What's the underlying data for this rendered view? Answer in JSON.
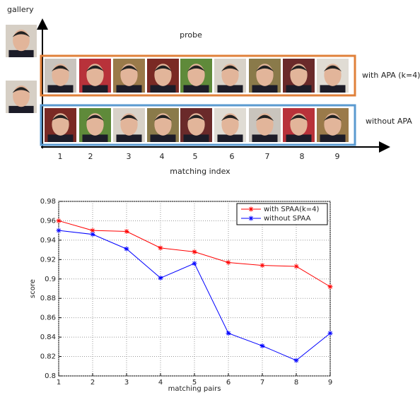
{
  "figure": {
    "gallery_label": "gallery",
    "probe_label": "probe",
    "row_labels": [
      "with APA (k=4)",
      "without APA"
    ],
    "index_labels": [
      "1",
      "2",
      "3",
      "4",
      "5",
      "6",
      "7",
      "8",
      "9"
    ],
    "x_axis_label": "matching index"
  },
  "chart_data": {
    "type": "line",
    "xlabel": "matching pairs",
    "ylabel": "score",
    "x": [
      1,
      2,
      3,
      4,
      5,
      6,
      7,
      8,
      9
    ],
    "series": [
      {
        "name": "with SPAA(k=4)",
        "color": "#ff0000",
        "values": [
          0.96,
          0.95,
          0.949,
          0.932,
          0.928,
          0.917,
          0.914,
          0.913,
          0.892
        ]
      },
      {
        "name": "without SPAA",
        "color": "#0000ff",
        "values": [
          0.95,
          0.946,
          0.931,
          0.901,
          0.916,
          0.844,
          0.831,
          0.816,
          0.844
        ]
      }
    ],
    "xlim": [
      1,
      9
    ],
    "xticks": [
      1,
      2,
      3,
      4,
      5,
      6,
      7,
      8,
      9
    ],
    "ylim": [
      0.8,
      0.98
    ],
    "yticks": [
      0.8,
      0.82,
      0.84,
      0.86,
      0.88,
      0.9,
      0.92,
      0.94,
      0.96,
      0.98
    ],
    "grid": true,
    "legend": "upper right"
  }
}
